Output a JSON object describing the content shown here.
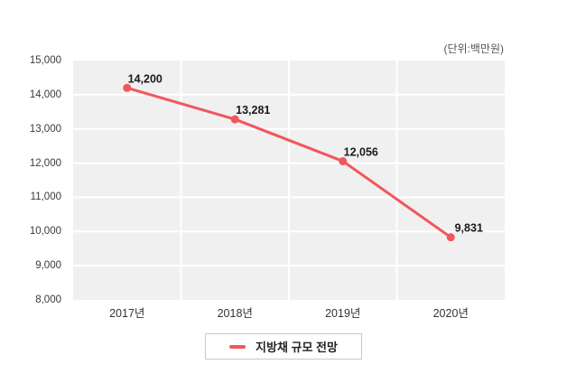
{
  "unit_label": "(단위:백만원)",
  "colors": {
    "line": "#f0575c",
    "point": "#f0575c",
    "plot_background": "#f0f0f0",
    "gridline": "#ffffff",
    "y_tick_text": "#3a3a3a",
    "x_tick_text": "#333333",
    "data_label_text": "#1a1a1a",
    "legend_border": "#c9c9c9",
    "unit_text": "#555555"
  },
  "chart_data": {
    "type": "line",
    "title": "",
    "xlabel": "",
    "ylabel": "",
    "unit": "(단위:백만원)",
    "categories": [
      "2017년",
      "2018년",
      "2019년",
      "2020년"
    ],
    "series": [
      {
        "name": "지방채 규모 전망",
        "values": [
          14200,
          13281,
          12056,
          9831
        ]
      }
    ],
    "data_labels": [
      "14,200",
      "13,281",
      "12,056",
      "9,831"
    ],
    "y_ticks": [
      15000,
      14000,
      13000,
      12000,
      11000,
      10000,
      9000,
      8000
    ],
    "y_tick_labels": [
      "15,000",
      "14,000",
      "13,000",
      "12,000",
      "11,000",
      "10,000",
      "9,000",
      "8,000"
    ],
    "ylim": [
      8000,
      15000
    ],
    "grid": true,
    "legend_position": "bottom"
  },
  "legend": {
    "label": "지방채 규모 전망"
  }
}
